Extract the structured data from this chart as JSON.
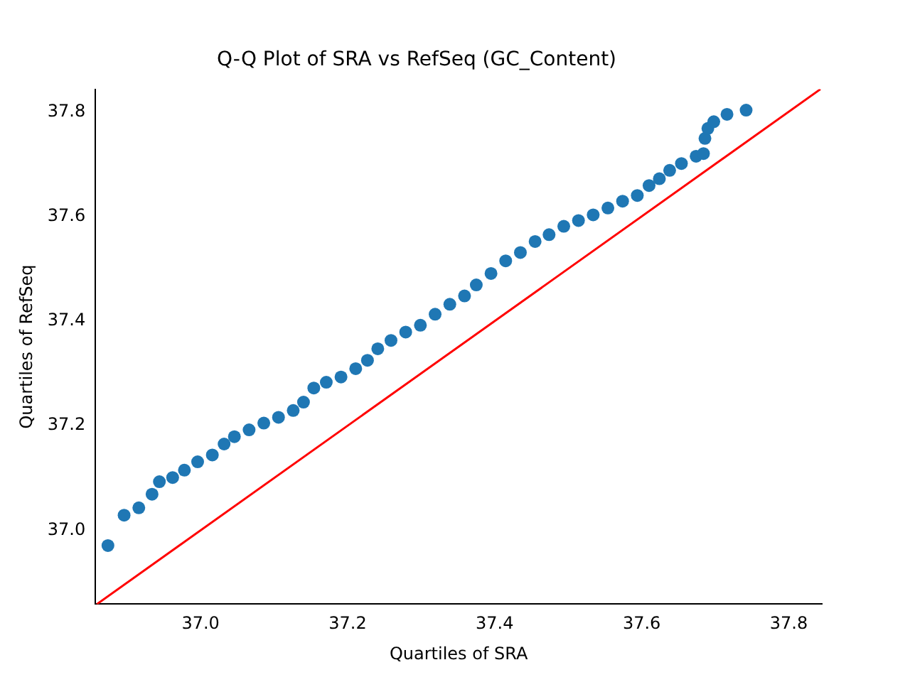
{
  "chart_data": {
    "type": "scatter",
    "title": "Q-Q Plot of SRA vs RefSeq (GC_Content)",
    "xlabel": "Quartiles of SRA",
    "ylabel": "Quartiles of RefSeq",
    "xlim": [
      36.857,
      37.845
    ],
    "ylim": [
      36.859,
      37.843
    ],
    "xticks": [
      {
        "value": 37,
        "label": "37.0"
      },
      37.2,
      37.4,
      37.6,
      37.8
    ],
    "yticks": [
      {
        "value": 37,
        "label": "37.0"
      },
      37.2,
      37.4,
      37.6,
      37.8
    ],
    "grid": false,
    "legend": false,
    "marker": "circle",
    "series": [
      {
        "color": "#1f77b4",
        "x": [
          36.874,
          36.896,
          36.916,
          36.934,
          36.944,
          36.962,
          36.978,
          36.996,
          37.016,
          37.032,
          37.046,
          37.066,
          37.086,
          37.106,
          37.126,
          37.14,
          37.154,
          37.171,
          37.191,
          37.211,
          37.227,
          37.241,
          37.259,
          37.279,
          37.299,
          37.319,
          37.339,
          37.359,
          37.375,
          37.395,
          37.415,
          37.435,
          37.455,
          37.474,
          37.494,
          37.514,
          37.534,
          37.554,
          37.574,
          37.594,
          37.61,
          37.624,
          37.638,
          37.654,
          37.674,
          37.684,
          37.686,
          37.69,
          37.698,
          37.716,
          37.742
        ],
        "values": [
          36.971,
          37.029,
          37.043,
          37.069,
          37.093,
          37.101,
          37.115,
          37.131,
          37.144,
          37.165,
          37.179,
          37.192,
          37.205,
          37.216,
          37.229,
          37.245,
          37.272,
          37.283,
          37.293,
          37.309,
          37.325,
          37.347,
          37.363,
          37.379,
          37.392,
          37.413,
          37.432,
          37.448,
          37.469,
          37.491,
          37.515,
          37.531,
          37.552,
          37.565,
          37.581,
          37.592,
          37.603,
          37.616,
          37.629,
          37.64,
          37.659,
          37.672,
          37.688,
          37.701,
          37.715,
          37.72,
          37.749,
          37.768,
          37.781,
          37.795,
          37.803
        ]
      },
      {
        "type": "line",
        "color": "#ff0000",
        "marker": "none",
        "line_style": "solid",
        "x": [
          36.859,
          37.843
        ],
        "values": [
          36.859,
          37.843
        ]
      }
    ]
  }
}
